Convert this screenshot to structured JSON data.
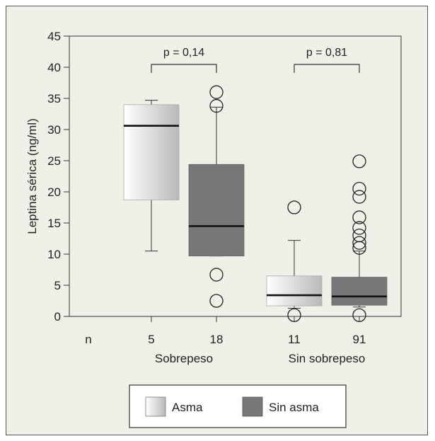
{
  "chart_data": {
    "type": "boxplot",
    "ylabel": "Leptina sérica (ng/ml)",
    "ylim": [
      0,
      45
    ],
    "yticks": [
      0,
      5,
      10,
      15,
      20,
      25,
      30,
      35,
      40,
      45
    ],
    "n_label": "n",
    "groups": [
      {
        "label": "Sobrepeso",
        "p_label": "p = 0,14"
      },
      {
        "label": "Sin sobrepeso",
        "p_label": "p = 0,81"
      }
    ],
    "boxes": [
      {
        "group": "Sobrepeso",
        "series": "Asma",
        "n": "5",
        "whisker_low": 10.5,
        "q1": 18.7,
        "median": 30.6,
        "q3": 34.0,
        "whisker_high": 34.7,
        "outliers": []
      },
      {
        "group": "Sobrepeso",
        "series": "Sin asma",
        "n": "18",
        "whisker_low": 9.7,
        "q1": 9.7,
        "median": 14.5,
        "q3": 24.4,
        "whisker_high": 33.6,
        "outliers": [
          36.0,
          33.8,
          6.7,
          2.5
        ]
      },
      {
        "group": "Sin sobrepeso",
        "series": "Asma",
        "n": "11",
        "whisker_low": 1.3,
        "q1": 1.7,
        "median": 3.4,
        "q3": 6.5,
        "whisker_high": 12.2,
        "outliers": [
          17.5,
          0.2
        ]
      },
      {
        "group": "Sin sobrepeso",
        "series": "Sin asma",
        "n": "91",
        "whisker_low": 1.5,
        "q1": 1.8,
        "median": 3.2,
        "q3": 6.3,
        "whisker_high": 10.5,
        "outliers": [
          24.9,
          20.5,
          19.2,
          15.9,
          14.2,
          13.0,
          11.8,
          11.0,
          0.2
        ]
      }
    ],
    "legend": [
      {
        "name": "Asma",
        "style": "gradient",
        "color": "#c8c8c8"
      },
      {
        "name": "Sin asma",
        "style": "solid",
        "color": "#777777"
      }
    ],
    "colors": {
      "background": "#f0efe8",
      "axis": "#333333",
      "median": "#111111"
    }
  }
}
